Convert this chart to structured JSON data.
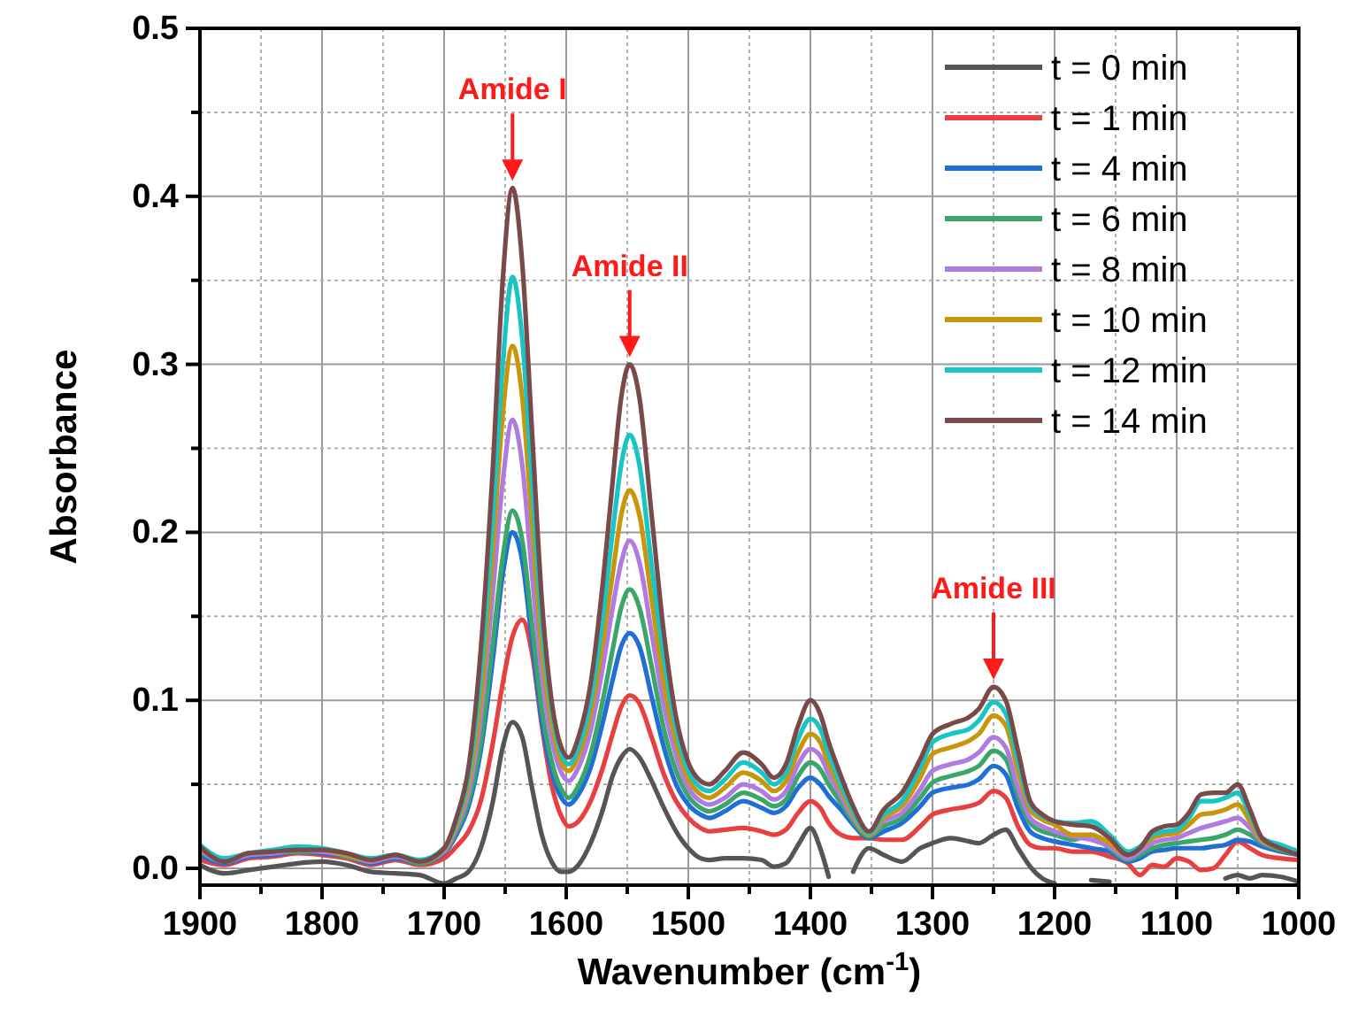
{
  "chart_data": {
    "type": "line",
    "xlabel": "Wavenumber (cm$^{-1}$)",
    "ylabel": "Absorbance",
    "x": [
      1900,
      1880,
      1860,
      1840,
      1820,
      1800,
      1780,
      1760,
      1740,
      1720,
      1700,
      1690,
      1680,
      1670,
      1660,
      1652,
      1644,
      1636,
      1628,
      1620,
      1612,
      1604,
      1598,
      1590,
      1580,
      1570,
      1562,
      1555,
      1548,
      1540,
      1530,
      1520,
      1510,
      1500,
      1490,
      1483,
      1470,
      1455,
      1440,
      1430,
      1420,
      1410,
      1400,
      1392,
      1385,
      1375,
      1365,
      1352,
      1340,
      1325,
      1310,
      1300,
      1285,
      1270,
      1262,
      1250,
      1240,
      1230,
      1220,
      1210,
      1200,
      1185,
      1170,
      1155,
      1140,
      1130,
      1120,
      1110,
      1100,
      1090,
      1080,
      1070,
      1060,
      1050,
      1040,
      1030,
      1015,
      1000
    ],
    "xlim": [
      1900,
      1000
    ],
    "xticks": [
      1900,
      {
        "value": 1850,
        "label": null
      },
      1800,
      {
        "value": 1750,
        "label": null
      },
      1700,
      {
        "value": 1650,
        "label": null
      },
      1600,
      {
        "value": 1550,
        "label": null
      },
      1500,
      {
        "value": 1450,
        "label": null
      },
      1400,
      {
        "value": 1350,
        "label": null
      },
      1300,
      {
        "value": 1250,
        "label": null
      },
      1200,
      {
        "value": 1150,
        "label": null
      },
      1100,
      {
        "value": 1050,
        "label": null
      },
      1000
    ],
    "ylim": [
      -0.01,
      0.5
    ],
    "yticks": [
      {
        "value": 0,
        "label": "0.0"
      },
      {
        "value": 0.05,
        "label": null
      },
      0.1,
      {
        "value": 0.15,
        "label": null
      },
      0.2,
      {
        "value": 0.25,
        "label": null
      },
      0.3,
      {
        "value": 0.35,
        "label": null
      },
      0.4,
      {
        "value": 0.45,
        "label": null
      },
      0.5
    ],
    "grid": true,
    "legend": "top right",
    "annotations": [
      {
        "text": "Amide I",
        "x": 1644,
        "y": 0.405
      },
      {
        "text": "Amide II",
        "x": 1548,
        "y": 0.3
      },
      {
        "text": "Amide III",
        "x": 1250,
        "y": 0.108
      }
    ],
    "series": [
      {
        "name": "t = 0 min",
        "color": "#555555",
        "values": [
          0.002,
          -0.003,
          -0.001,
          0.001,
          0.003,
          0.004,
          0.002,
          -0.002,
          -0.003,
          -0.004,
          -0.009,
          -0.006,
          -0.002,
          0.012,
          0.04,
          0.072,
          0.087,
          0.078,
          0.048,
          0.02,
          0.004,
          -0.002,
          -0.002,
          0.002,
          0.015,
          0.035,
          0.055,
          0.066,
          0.071,
          0.066,
          0.052,
          0.036,
          0.022,
          0.012,
          0.006,
          0.005,
          0.006,
          0.006,
          0.005,
          0.001,
          0.003,
          0.014,
          0.024,
          0.012,
          -0.005,
          null,
          -0.002,
          0.012,
          0.008,
          0.004,
          0.012,
          0.015,
          0.018,
          0.016,
          0.015,
          0.02,
          0.023,
          0.012,
          0.001,
          -0.006,
          -0.009,
          null,
          -0.007,
          -0.008,
          null,
          null,
          null,
          null,
          null,
          null,
          null,
          null,
          -0.006,
          -0.004,
          -0.006,
          -0.004,
          -0.005,
          -0.008
        ]
      },
      {
        "name": "t = 1 min",
        "color": "#e84040",
        "values": [
          0.005,
          0.002,
          0.006,
          0.007,
          0.009,
          0.008,
          0.006,
          0.002,
          0.005,
          0.002,
          0.006,
          0.013,
          0.022,
          0.04,
          0.075,
          0.11,
          0.138,
          0.148,
          0.128,
          0.085,
          0.05,
          0.031,
          0.025,
          0.028,
          0.04,
          0.06,
          0.08,
          0.096,
          0.103,
          0.098,
          0.078,
          0.056,
          0.04,
          0.03,
          0.024,
          0.022,
          0.023,
          0.024,
          0.022,
          0.02,
          0.023,
          0.033,
          0.04,
          0.036,
          0.027,
          0.02,
          0.018,
          0.018,
          0.017,
          0.017,
          0.025,
          0.032,
          0.035,
          0.037,
          0.039,
          0.046,
          0.042,
          0.025,
          0.014,
          0.012,
          0.012,
          0.01,
          0.01,
          0.007,
          0.003,
          -0.004,
          0.002,
          0.001,
          0.006,
          0.004,
          -0.001,
          0.0,
          0.008,
          0.016,
          0.012,
          0.008,
          0.006,
          0.005
        ]
      },
      {
        "name": "t = 4 min",
        "color": "#1f6fd6",
        "values": [
          0.008,
          0.003,
          0.007,
          0.008,
          0.01,
          0.009,
          0.007,
          0.003,
          0.006,
          0.003,
          0.009,
          0.02,
          0.037,
          0.07,
          0.125,
          0.175,
          0.2,
          0.183,
          0.135,
          0.088,
          0.058,
          0.042,
          0.038,
          0.044,
          0.06,
          0.087,
          0.112,
          0.132,
          0.14,
          0.132,
          0.102,
          0.072,
          0.05,
          0.038,
          0.032,
          0.03,
          0.034,
          0.04,
          0.036,
          0.033,
          0.037,
          0.048,
          0.054,
          0.05,
          0.043,
          0.035,
          0.026,
          0.018,
          0.022,
          0.027,
          0.037,
          0.045,
          0.048,
          0.05,
          0.053,
          0.061,
          0.056,
          0.036,
          0.022,
          0.018,
          0.016,
          0.014,
          0.012,
          0.01,
          0.004,
          0.006,
          0.01,
          0.011,
          0.012,
          0.012,
          0.012,
          0.013,
          0.014,
          0.017,
          0.016,
          0.013,
          0.01,
          0.008
        ]
      },
      {
        "name": "t = 6 min",
        "color": "#3aa66a",
        "values": [
          0.01,
          0.004,
          0.008,
          0.009,
          0.01,
          0.01,
          0.007,
          0.004,
          0.007,
          0.003,
          0.01,
          0.022,
          0.04,
          0.075,
          0.135,
          0.185,
          0.213,
          0.195,
          0.145,
          0.095,
          0.064,
          0.047,
          0.042,
          0.049,
          0.068,
          0.1,
          0.13,
          0.155,
          0.166,
          0.155,
          0.12,
          0.083,
          0.058,
          0.043,
          0.036,
          0.034,
          0.038,
          0.045,
          0.041,
          0.037,
          0.041,
          0.055,
          0.063,
          0.059,
          0.05,
          0.039,
          0.028,
          0.019,
          0.025,
          0.03,
          0.042,
          0.051,
          0.055,
          0.058,
          0.061,
          0.07,
          0.065,
          0.043,
          0.027,
          0.022,
          0.02,
          0.017,
          0.02,
          0.012,
          0.005,
          0.008,
          0.012,
          0.014,
          0.015,
          0.016,
          0.017,
          0.018,
          0.02,
          0.023,
          0.02,
          0.015,
          0.011,
          0.008
        ]
      },
      {
        "name": "t = 8 min",
        "color": "#b07be0",
        "values": [
          0.011,
          0.004,
          0.008,
          0.009,
          0.011,
          0.01,
          0.008,
          0.004,
          0.007,
          0.004,
          0.01,
          0.024,
          0.045,
          0.09,
          0.165,
          0.23,
          0.267,
          0.24,
          0.175,
          0.115,
          0.077,
          0.057,
          0.052,
          0.06,
          0.082,
          0.12,
          0.155,
          0.182,
          0.195,
          0.182,
          0.14,
          0.097,
          0.067,
          0.048,
          0.04,
          0.038,
          0.042,
          0.05,
          0.046,
          0.041,
          0.046,
          0.062,
          0.071,
          0.067,
          0.056,
          0.043,
          0.03,
          0.02,
          0.028,
          0.033,
          0.047,
          0.058,
          0.062,
          0.065,
          0.069,
          0.078,
          0.072,
          0.048,
          0.03,
          0.025,
          0.022,
          0.019,
          0.017,
          0.013,
          0.006,
          0.01,
          0.015,
          0.017,
          0.018,
          0.021,
          0.024,
          0.026,
          0.028,
          0.03,
          0.024,
          0.016,
          0.012,
          0.009
        ]
      },
      {
        "name": "t = 10 min",
        "color": "#c8960a",
        "values": [
          0.012,
          0.005,
          0.009,
          0.01,
          0.012,
          0.011,
          0.008,
          0.005,
          0.008,
          0.004,
          0.011,
          0.026,
          0.05,
          0.1,
          0.19,
          0.27,
          0.311,
          0.28,
          0.205,
          0.13,
          0.087,
          0.063,
          0.058,
          0.067,
          0.092,
          0.135,
          0.175,
          0.21,
          0.225,
          0.21,
          0.16,
          0.11,
          0.075,
          0.053,
          0.044,
          0.042,
          0.048,
          0.057,
          0.052,
          0.046,
          0.052,
          0.069,
          0.08,
          0.075,
          0.062,
          0.047,
          0.032,
          0.02,
          0.03,
          0.037,
          0.054,
          0.068,
          0.072,
          0.076,
          0.08,
          0.091,
          0.085,
          0.058,
          0.035,
          0.029,
          0.026,
          0.02,
          0.02,
          0.015,
          0.008,
          0.012,
          0.018,
          0.02,
          0.021,
          0.026,
          0.032,
          0.033,
          0.035,
          0.038,
          0.028,
          0.017,
          0.012,
          0.009
        ]
      },
      {
        "name": "t = 12 min",
        "color": "#18c4c4",
        "values": [
          0.014,
          0.006,
          0.009,
          0.011,
          0.013,
          0.012,
          0.009,
          0.006,
          0.008,
          0.005,
          0.012,
          0.028,
          0.055,
          0.115,
          0.21,
          0.3,
          0.352,
          0.315,
          0.23,
          0.145,
          0.095,
          0.068,
          0.062,
          0.072,
          0.1,
          0.15,
          0.2,
          0.24,
          0.258,
          0.24,
          0.18,
          0.125,
          0.083,
          0.058,
          0.048,
          0.046,
          0.053,
          0.063,
          0.057,
          0.05,
          0.057,
          0.077,
          0.089,
          0.083,
          0.068,
          0.05,
          0.034,
          0.021,
          0.032,
          0.04,
          0.06,
          0.075,
          0.08,
          0.083,
          0.088,
          0.099,
          0.092,
          0.064,
          0.038,
          0.031,
          0.028,
          0.027,
          0.028,
          0.02,
          0.01,
          0.013,
          0.02,
          0.022,
          0.023,
          0.03,
          0.04,
          0.04,
          0.042,
          0.045,
          0.032,
          0.018,
          0.014,
          0.01
        ]
      },
      {
        "name": "t = 14 min",
        "color": "#7a4a4a",
        "values": [
          0.013,
          0.004,
          0.009,
          0.01,
          0.011,
          0.011,
          0.009,
          0.005,
          0.008,
          0.004,
          0.012,
          0.03,
          0.06,
          0.13,
          0.24,
          0.35,
          0.405,
          0.36,
          0.26,
          0.16,
          0.1,
          0.072,
          0.066,
          0.078,
          0.11,
          0.17,
          0.23,
          0.28,
          0.3,
          0.28,
          0.21,
          0.14,
          0.09,
          0.063,
          0.052,
          0.05,
          0.058,
          0.069,
          0.062,
          0.054,
          0.062,
          0.085,
          0.1,
          0.092,
          0.075,
          0.055,
          0.037,
          0.022,
          0.035,
          0.045,
          0.065,
          0.08,
          0.086,
          0.09,
          0.095,
          0.108,
          0.1,
          0.07,
          0.04,
          0.032,
          0.028,
          0.026,
          0.025,
          0.018,
          0.008,
          0.012,
          0.022,
          0.025,
          0.026,
          0.033,
          0.044,
          0.045,
          0.045,
          0.05,
          0.035,
          0.018,
          0.012,
          0.008
        ]
      }
    ]
  }
}
